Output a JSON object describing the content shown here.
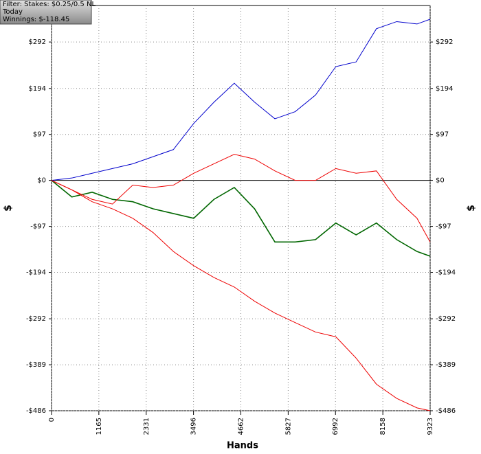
{
  "chart_data": {
    "type": "line",
    "annotations": [
      "Filter: Stakes: $0.25/0.5 NL",
      "Today",
      "Winnings: $-118.45"
    ],
    "xlabel": "Hands",
    "ylabel": "$",
    "x": [
      0,
      500,
      1000,
      1500,
      2000,
      2500,
      3000,
      3500,
      4000,
      4500,
      5000,
      5500,
      6000,
      6500,
      7000,
      7500,
      8000,
      8500,
      9000,
      9323
    ],
    "series": [
      {
        "color": "#0000cc",
        "values": [
          0,
          5,
          15,
          25,
          35,
          50,
          65,
          120,
          165,
          205,
          165,
          130,
          145,
          180,
          240,
          250,
          320,
          335,
          330,
          340
        ]
      },
      {
        "color": "#006600",
        "values": [
          0,
          -35,
          -25,
          -40,
          -45,
          -60,
          -70,
          -80,
          -40,
          -15,
          -60,
          -130,
          -130,
          -125,
          -90,
          -115,
          -90,
          -125,
          -150,
          -160
        ]
      },
      {
        "color": "#ee0000",
        "values": [
          0,
          -20,
          -40,
          -50,
          -10,
          -15,
          -10,
          15,
          35,
          55,
          45,
          20,
          0,
          0,
          25,
          15,
          20,
          -40,
          -80,
          -130
        ]
      },
      {
        "color": "#ee0000",
        "values": [
          0,
          -20,
          -45,
          -60,
          -80,
          -110,
          -150,
          -180,
          -205,
          -225,
          -255,
          -280,
          -300,
          -320,
          -330,
          -375,
          -430,
          -460,
          -480,
          -486
        ]
      }
    ],
    "xlim": [
      0,
      9323
    ],
    "xticks": [
      0,
      1165,
      2331,
      3496,
      4662,
      5827,
      6992,
      8158,
      9323
    ],
    "ylim": [
      -486,
      369
    ],
    "yticks": [
      {
        "value": 292,
        "label": "$292"
      },
      {
        "value": 194,
        "label": "$194"
      },
      {
        "value": 97,
        "label": "$97"
      },
      {
        "value": 0,
        "label": "$0"
      },
      {
        "value": -97,
        "label": "-$97"
      },
      {
        "value": -194,
        "label": "-$194"
      },
      {
        "value": -292,
        "label": "-$292"
      },
      {
        "value": -389,
        "label": "-$389"
      },
      {
        "value": -486,
        "label": "-$486"
      }
    ],
    "grid": true
  }
}
